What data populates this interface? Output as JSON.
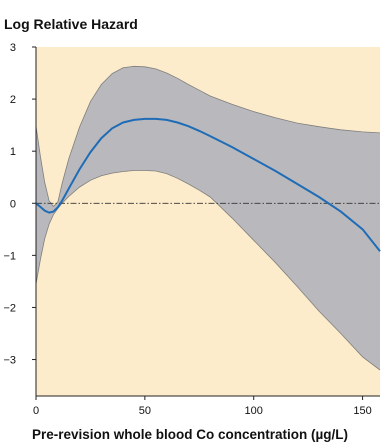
{
  "chart_data": {
    "type": "line",
    "title": "Log Relative Hazard",
    "xlabel": "Pre-revision whole blood Co concentration (µg/L)",
    "ylabel": "",
    "xlim": [
      0,
      158
    ],
    "ylim": [
      -3.7,
      3
    ],
    "x_ticks": [
      0,
      50,
      100,
      150
    ],
    "x_tick_labels": [
      "0",
      "50",
      "100",
      "150"
    ],
    "y_ticks": [
      3,
      2,
      1,
      0,
      -1,
      -2,
      -3
    ],
    "y_tick_labels": [
      "3",
      "2",
      "1",
      "0",
      "−1",
      "−2",
      "−3"
    ],
    "reference_line": 0,
    "grid": false,
    "colors": {
      "background": "#fdeccb",
      "band": "#b9b9bd",
      "band_edge": "#7f7f7f",
      "line": "#1f6cb6",
      "reference": "#333333"
    },
    "series": [
      {
        "x": [
          0,
          2,
          4,
          6,
          8,
          10,
          12,
          15,
          20,
          25,
          30,
          35,
          40,
          45,
          50,
          55,
          60,
          65,
          70,
          75,
          80,
          90,
          100,
          110,
          120,
          130,
          140,
          150,
          158
        ],
        "estimate": [
          0.0,
          -0.07,
          -0.14,
          -0.18,
          -0.16,
          -0.08,
          0.05,
          0.28,
          0.65,
          0.98,
          1.25,
          1.44,
          1.55,
          1.6,
          1.62,
          1.62,
          1.6,
          1.55,
          1.48,
          1.39,
          1.29,
          1.08,
          0.85,
          0.62,
          0.37,
          0.12,
          -0.16,
          -0.5,
          -0.92
        ],
        "lower": [
          -1.55,
          -1.08,
          -0.68,
          -0.4,
          -0.22,
          -0.1,
          0.0,
          0.13,
          0.31,
          0.44,
          0.53,
          0.58,
          0.61,
          0.63,
          0.63,
          0.62,
          0.57,
          0.48,
          0.37,
          0.25,
          0.12,
          -0.28,
          -0.71,
          -1.14,
          -1.6,
          -2.07,
          -2.5,
          -2.95,
          -3.2
        ]
      },
      {
        "x": [
          0,
          2,
          4,
          6,
          8,
          10,
          12,
          15,
          20,
          25,
          30,
          35,
          40,
          45,
          50,
          55,
          60,
          65,
          70,
          75,
          80,
          90,
          100,
          110,
          120,
          130,
          140,
          150,
          158
        ],
        "upper": [
          1.48,
          0.9,
          0.4,
          0.05,
          -0.06,
          0.02,
          0.38,
          0.85,
          1.46,
          1.95,
          2.28,
          2.49,
          2.6,
          2.63,
          2.62,
          2.58,
          2.5,
          2.4,
          2.28,
          2.17,
          2.06,
          1.9,
          1.76,
          1.64,
          1.54,
          1.47,
          1.41,
          1.37,
          1.35
        ]
      }
    ]
  }
}
